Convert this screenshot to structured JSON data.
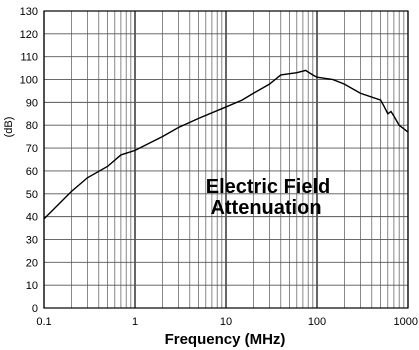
{
  "chart_data": {
    "type": "line",
    "title": "",
    "xlabel": "Frequency (MHz)",
    "ylabel": "(dB)",
    "xscale": "log",
    "xlim": [
      0.1,
      1000
    ],
    "ylim": [
      0,
      130
    ],
    "grid": true,
    "x_tick_labels": [
      "0.1",
      "1",
      "10",
      "100",
      "1000"
    ],
    "y_tick_labels": [
      "0",
      "10",
      "20",
      "30",
      "40",
      "50",
      "60",
      "70",
      "80",
      "90",
      "100",
      "110",
      "120",
      "130"
    ],
    "annotation": [
      "Electric Field",
      "Attenuation"
    ],
    "series": [
      {
        "x": [
          0.1,
          0.15,
          0.2,
          0.3,
          0.5,
          0.7,
          1,
          2,
          3,
          5,
          10,
          15,
          20,
          30,
          40,
          60,
          75,
          90,
          100,
          150,
          200,
          300,
          500,
          550,
          600,
          650,
          700,
          800,
          1000
        ],
        "y": [
          39,
          46,
          51,
          57,
          62,
          67,
          69,
          75,
          79,
          83,
          88,
          91,
          94,
          98,
          102,
          103,
          104,
          102,
          101,
          100,
          98,
          94,
          91,
          88,
          85,
          86,
          84,
          80,
          77
        ]
      }
    ],
    "colors": {
      "line": "#000000",
      "grid": "#555555",
      "background": "#ffffff"
    }
  }
}
